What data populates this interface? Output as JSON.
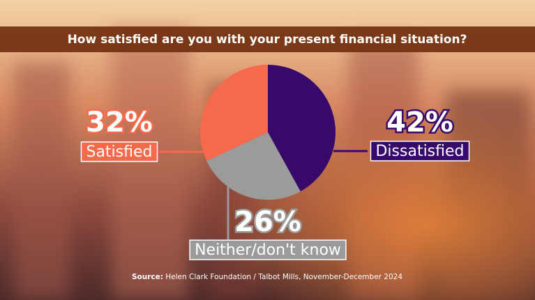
{
  "chart_data": {
    "type": "pie",
    "title": "How satisfied are you with your present financial situation?",
    "categories": [
      "Dissatisfied",
      "Neither/don't know",
      "Satisfied"
    ],
    "values": [
      42,
      26,
      32
    ],
    "value_labels": [
      "42%",
      "26%",
      "32%"
    ],
    "colors": [
      "#36096b",
      "#9b9b9b",
      "#f56a4a"
    ],
    "source_label": "Source:",
    "source": "Helen Clark Foundation / Talbot Mills, November-December 2024"
  }
}
